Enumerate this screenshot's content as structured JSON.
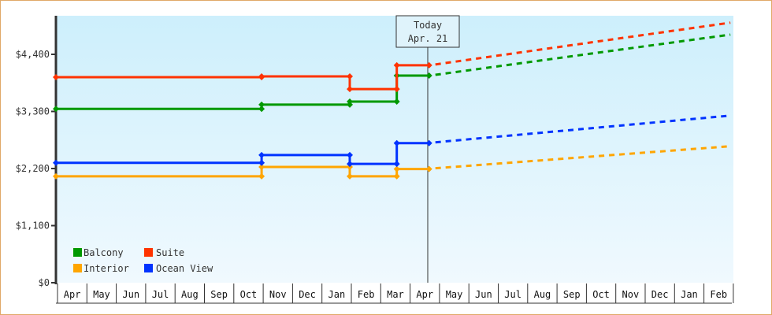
{
  "chart_data": {
    "type": "line",
    "title": "",
    "xlabel": "",
    "ylabel": "",
    "ylim": [
      0,
      5100
    ],
    "yticks": [
      {
        "value": 0,
        "label": "$0"
      },
      {
        "value": 1100,
        "label": "$1,100"
      },
      {
        "value": 2200,
        "label": "$2,200"
      },
      {
        "value": 3300,
        "label": "$3,300"
      },
      {
        "value": 4400,
        "label": "$4,400"
      }
    ],
    "categories": [
      "Apr",
      "May",
      "Jun",
      "Jul",
      "Aug",
      "Sep",
      "Oct",
      "Nov",
      "Dec",
      "Jan",
      "Feb",
      "Mar",
      "Apr",
      "May",
      "Jun",
      "Jul",
      "Aug",
      "Sep",
      "Oct",
      "Nov",
      "Dec",
      "Jan",
      "Feb"
    ],
    "annotation": {
      "line1": "Today",
      "line2": "Apr. 21",
      "month_index": 12.7
    },
    "grid": false,
    "legend_position": "bottom-left inside",
    "series": [
      {
        "name": "Balcony",
        "color": "#009900",
        "steps": [
          [
            0,
            3350
          ],
          [
            7,
            3350
          ],
          [
            7,
            3430
          ],
          [
            10,
            3430
          ],
          [
            10,
            3490
          ],
          [
            11.6,
            3490
          ],
          [
            11.6,
            3990
          ],
          [
            12.7,
            3990
          ]
        ],
        "projection": [
          [
            12.7,
            3990
          ],
          [
            22.9,
            4780
          ]
        ]
      },
      {
        "name": "Suite",
        "color": "#ff3300",
        "steps": [
          [
            0,
            3960
          ],
          [
            7,
            3960
          ],
          [
            7,
            3975
          ],
          [
            10,
            3975
          ],
          [
            10,
            3730
          ],
          [
            11.6,
            3730
          ],
          [
            11.6,
            4190
          ],
          [
            12.7,
            4190
          ]
        ],
        "projection": [
          [
            12.7,
            4190
          ],
          [
            22.9,
            5010
          ]
        ]
      },
      {
        "name": "Interior",
        "color": "#ffa500",
        "steps": [
          [
            0,
            2050
          ],
          [
            7,
            2050
          ],
          [
            7,
            2230
          ],
          [
            10,
            2230
          ],
          [
            10,
            2050
          ],
          [
            11.6,
            2050
          ],
          [
            11.6,
            2190
          ],
          [
            12.7,
            2190
          ]
        ],
        "projection": [
          [
            12.7,
            2190
          ],
          [
            22.9,
            2630
          ]
        ]
      },
      {
        "name": "Ocean View",
        "color": "#0033ff",
        "steps": [
          [
            0,
            2310
          ],
          [
            7,
            2310
          ],
          [
            7,
            2460
          ],
          [
            10,
            2460
          ],
          [
            10,
            2290
          ],
          [
            11.6,
            2290
          ],
          [
            11.6,
            2690
          ],
          [
            12.7,
            2690
          ]
        ],
        "projection": [
          [
            12.7,
            2690
          ],
          [
            22.9,
            3220
          ]
        ]
      }
    ]
  },
  "legend": {
    "balcony": "Balcony",
    "suite": "Suite",
    "interior": "Interior",
    "ocean_view": "Ocean View"
  },
  "today": {
    "line1": "Today",
    "line2": "Apr. 21"
  }
}
